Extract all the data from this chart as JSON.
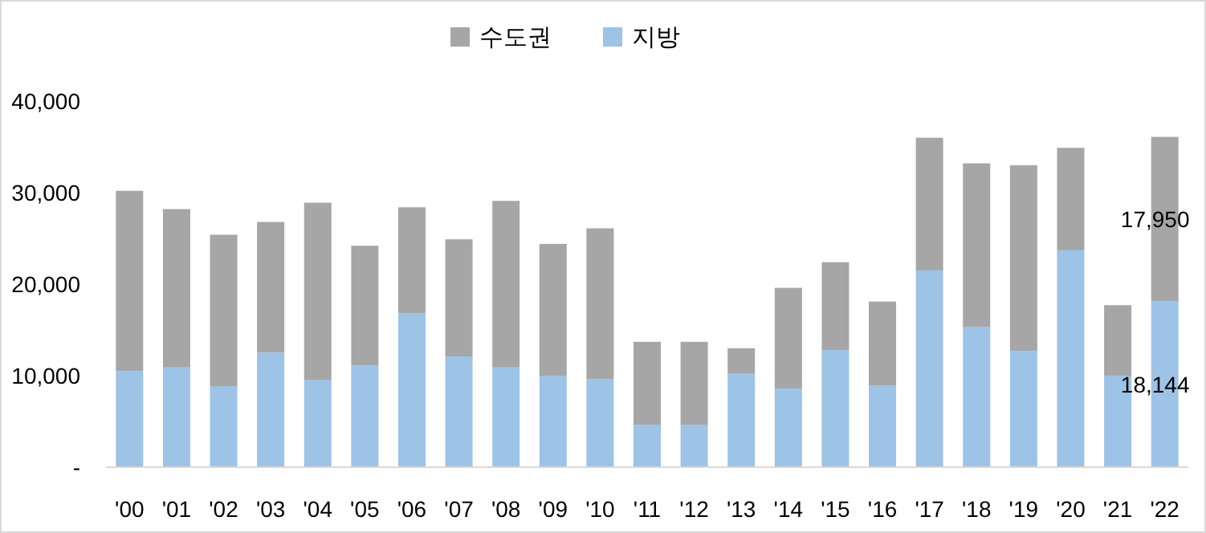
{
  "chart_data": {
    "type": "bar",
    "stacked": true,
    "legend": "top",
    "categories": [
      "'00",
      "'01",
      "'02",
      "'03",
      "'04",
      "'05",
      "'06",
      "'07",
      "'08",
      "'09",
      "'10",
      "'11",
      "'12",
      "'13",
      "'14",
      "'15",
      "'16",
      "'17",
      "'18",
      "'19",
      "'20",
      "'21",
      "'22"
    ],
    "series": [
      {
        "name": "지방",
        "color": "#9dc3e6",
        "values": [
          10500,
          10900,
          8800,
          12500,
          9500,
          11100,
          16800,
          12100,
          10900,
          10000,
          9600,
          4600,
          4600,
          10200,
          8600,
          12800,
          8900,
          21500,
          15300,
          12700,
          23700,
          10000,
          18144
        ],
        "value_labels": [
          null,
          null,
          null,
          null,
          null,
          null,
          null,
          null,
          null,
          null,
          null,
          null,
          null,
          null,
          null,
          null,
          null,
          null,
          null,
          null,
          null,
          null,
          "18,144"
        ]
      },
      {
        "name": "수도권",
        "color": "#a6a6a6",
        "values": [
          19700,
          17300,
          16600,
          14300,
          19400,
          13100,
          11600,
          12800,
          18200,
          14400,
          16500,
          9100,
          9100,
          2800,
          11000,
          9600,
          9200,
          14500,
          17900,
          20300,
          11200,
          7700,
          17950
        ],
        "value_labels": [
          null,
          null,
          null,
          null,
          null,
          null,
          null,
          null,
          null,
          null,
          null,
          null,
          null,
          null,
          null,
          null,
          null,
          null,
          null,
          null,
          null,
          null,
          "17,950"
        ]
      }
    ],
    "ylim": [
      0,
      40000
    ],
    "yticks": [
      {
        "value": 0,
        "label": "-"
      },
      {
        "value": 10000,
        "label": "10,000"
      },
      {
        "value": 20000,
        "label": "20,000"
      },
      {
        "value": 30000,
        "label": "30,000"
      },
      {
        "value": 40000,
        "label": "40,000"
      }
    ],
    "grid": false
  }
}
